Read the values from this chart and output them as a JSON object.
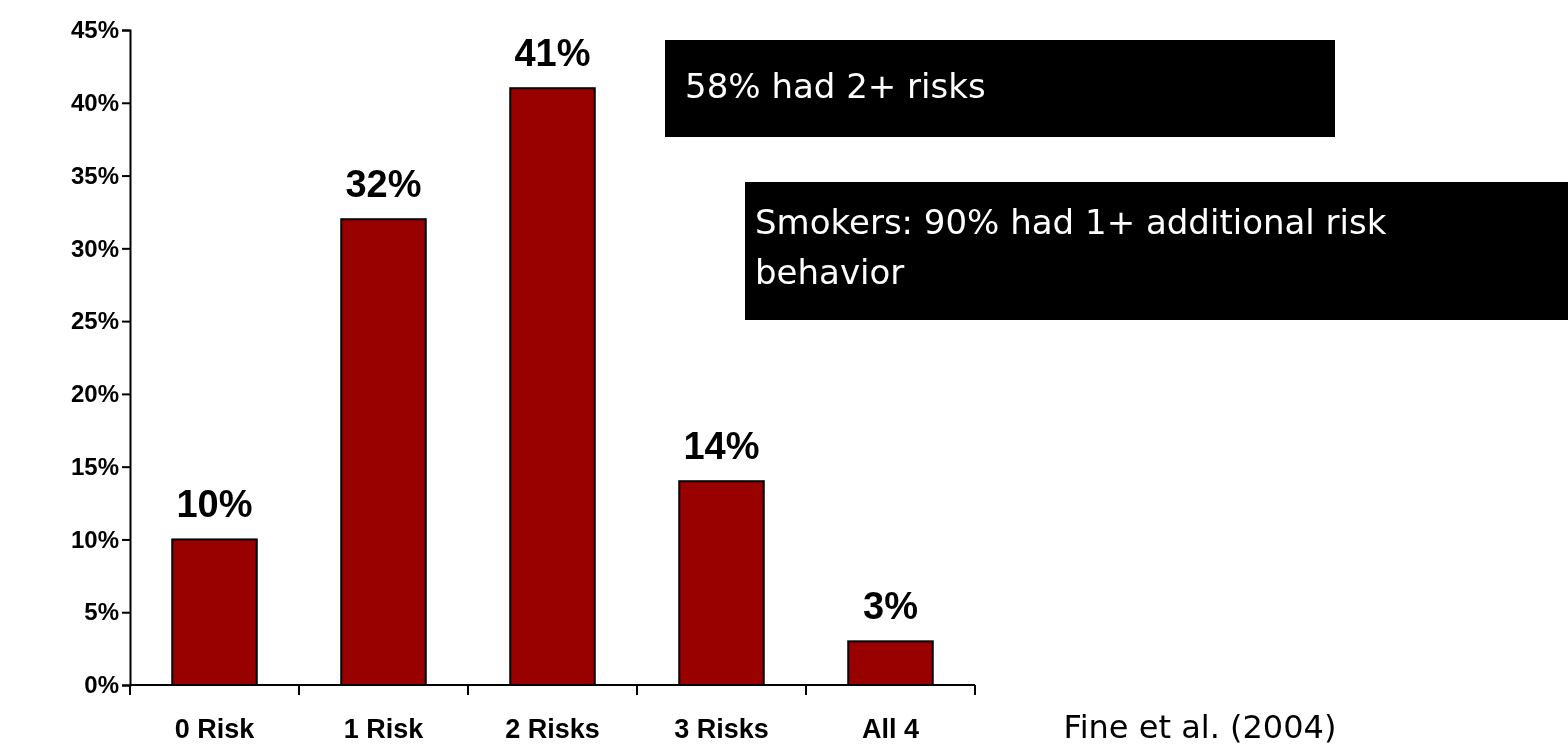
{
  "chart_data": {
    "type": "bar",
    "categories": [
      "0 Risk",
      "1 Risk",
      "2 Risks",
      "3 Risks",
      "All 4"
    ],
    "values": [
      10,
      32,
      41,
      14,
      3
    ],
    "color": "#990000",
    "value_labels": [
      "10%",
      "32%",
      "41%",
      "14%",
      "3%"
    ],
    "ylim": [
      0,
      45
    ],
    "yticks": [
      {
        "value": 0,
        "label": "0%"
      },
      {
        "value": 5,
        "label": "5%"
      },
      {
        "value": 10,
        "label": "10%"
      },
      {
        "value": 15,
        "label": "15%"
      },
      {
        "value": 20,
        "label": "20%"
      },
      {
        "value": 25,
        "label": "25%"
      },
      {
        "value": 30,
        "label": "30%"
      },
      {
        "value": 35,
        "label": "35%"
      },
      {
        "value": 40,
        "label": "40%"
      },
      {
        "value": 45,
        "label": "45%"
      }
    ],
    "grid": false,
    "annotations": [
      "58% had 2+ risks",
      "Smokers: 90% had 1+ additional risk behavior",
      "Fine et al. (2004)"
    ]
  }
}
